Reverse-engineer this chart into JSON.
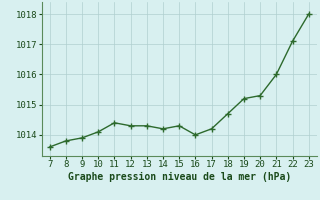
{
  "x": [
    7,
    8,
    9,
    10,
    11,
    12,
    13,
    14,
    15,
    16,
    17,
    18,
    19,
    20,
    21,
    22,
    23
  ],
  "y": [
    1013.6,
    1013.8,
    1013.9,
    1014.1,
    1014.4,
    1014.3,
    1014.3,
    1014.2,
    1014.3,
    1014.0,
    1014.2,
    1014.7,
    1015.2,
    1015.3,
    1016.0,
    1017.1,
    1018.0
  ],
  "line_color": "#2d6a2d",
  "marker_color": "#2d6a2d",
  "bg_color": "#d8f0f0",
  "grid_color": "#b0d0d0",
  "xlabel": "Graphe pression niveau de la mer (hPa)",
  "xlabel_color": "#1a4a1a",
  "xlabel_fontsize": 7.0,
  "ytick_labels": [
    "1014",
    "1015",
    "1016",
    "1017",
    "1018"
  ],
  "ytick_values": [
    1014,
    1015,
    1016,
    1017,
    1018
  ],
  "ylim": [
    1013.3,
    1018.4
  ],
  "xlim": [
    6.5,
    23.5
  ],
  "xtick_values": [
    7,
    8,
    9,
    10,
    11,
    12,
    13,
    14,
    15,
    16,
    17,
    18,
    19,
    20,
    21,
    22,
    23
  ],
  "tick_fontsize": 6.5,
  "linewidth": 1.0,
  "markersize": 4.0,
  "spine_color": "#5a8a5a"
}
